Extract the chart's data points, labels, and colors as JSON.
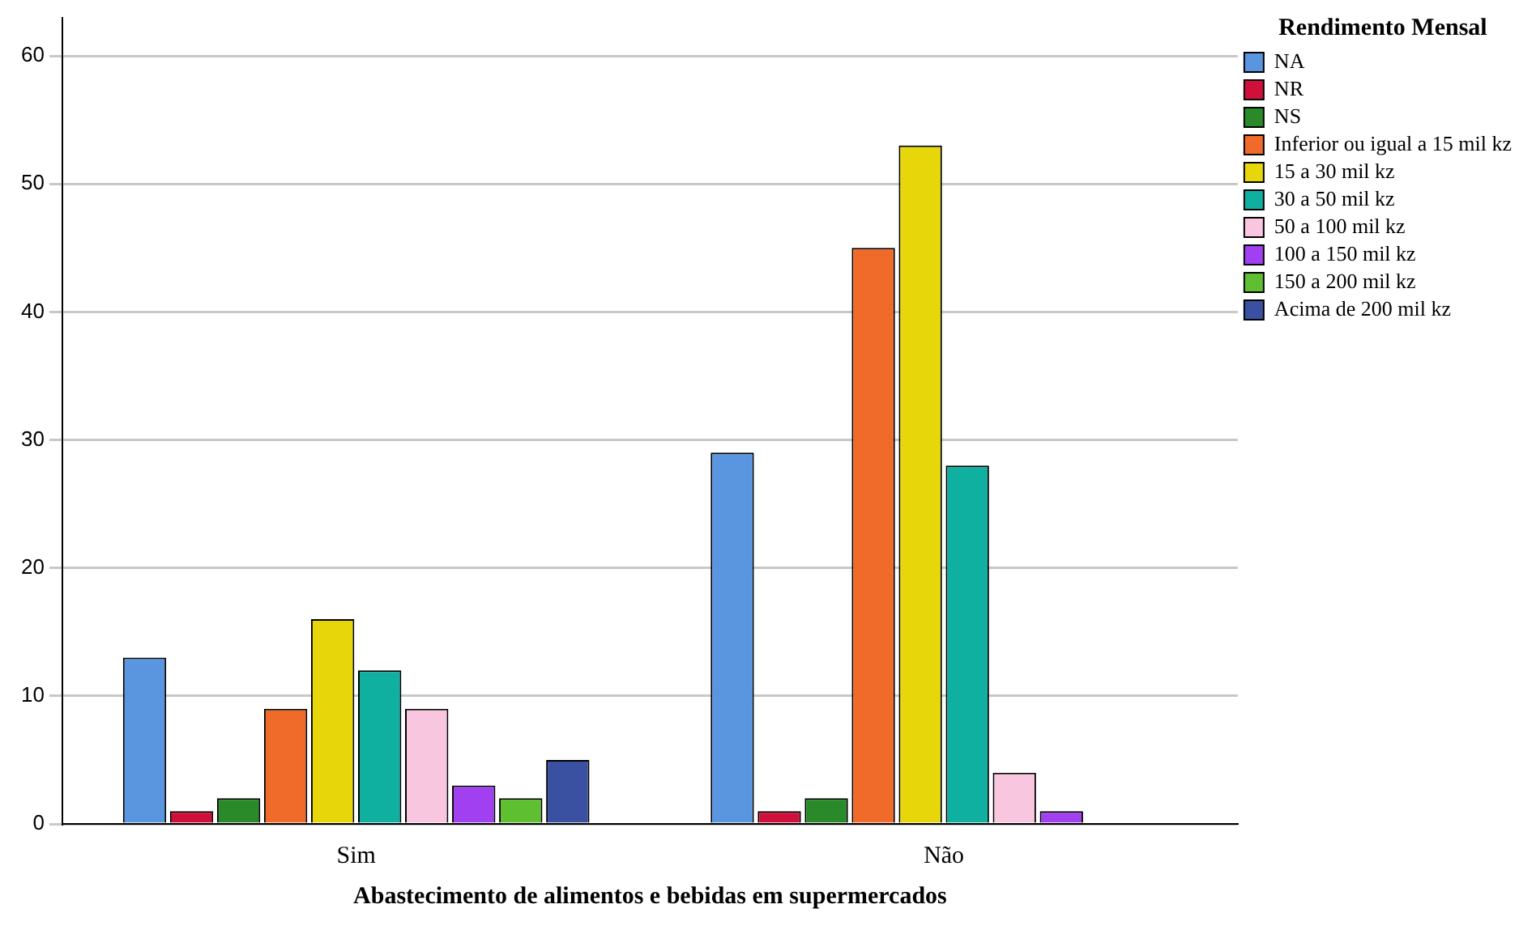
{
  "chart_data": {
    "type": "bar",
    "xlabel": "Abastecimento de alimentos e bebidas em supermercados",
    "legend_title": "Rendimento Mensal",
    "categories": [
      "Sim",
      "Não"
    ],
    "series": [
      {
        "name": "NA",
        "color": "#5a95e0",
        "values": [
          13,
          29
        ]
      },
      {
        "name": "NR",
        "color": "#d0103a",
        "values": [
          1,
          1
        ]
      },
      {
        "name": "NS",
        "color": "#2a8a2a",
        "values": [
          2,
          2
        ]
      },
      {
        "name": "Inferior ou igual a 15 mil kz",
        "color": "#f06a2a",
        "values": [
          9,
          45
        ]
      },
      {
        "name": "15 a 30 mil kz",
        "color": "#e6d60a",
        "values": [
          16,
          53
        ]
      },
      {
        "name": "30 a 50 mil kz",
        "color": "#10b0a0",
        "values": [
          12,
          28
        ]
      },
      {
        "name": "50 a 100 mil kz",
        "color": "#f9c6e0",
        "values": [
          9,
          4
        ]
      },
      {
        "name": "100 a 150 mil kz",
        "color": "#a040f0",
        "values": [
          3,
          1
        ]
      },
      {
        "name": "150 a 200 mil kz",
        "color": "#5ec030",
        "values": [
          2,
          0
        ]
      },
      {
        "name": "Acima de 200 mil kz",
        "color": "#3a50a0",
        "values": [
          5,
          0
        ]
      }
    ],
    "ylim": [
      0,
      63
    ],
    "yticks": [
      0,
      10,
      20,
      30,
      40,
      50,
      60
    ],
    "grid": "y",
    "legend": "top right"
  }
}
